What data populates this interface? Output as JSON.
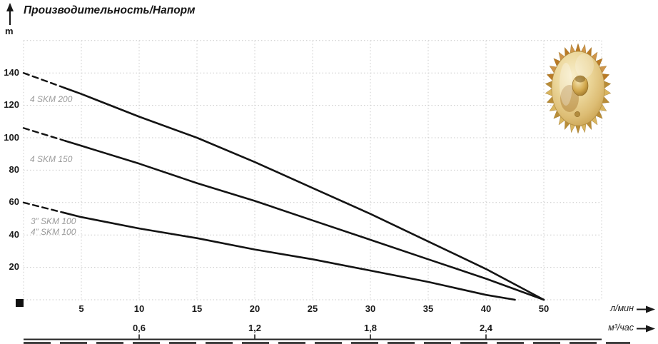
{
  "title": "Производительность/Напорм",
  "y_axis": {
    "unit_label": "m",
    "tick_values": [
      140,
      120,
      100,
      80,
      60,
      40,
      20
    ]
  },
  "x_axis_lmin": {
    "unit_label": "л/мин",
    "tick_labels": [
      "5",
      "10",
      "15",
      "20",
      "25",
      "30",
      "35",
      "40",
      "50"
    ]
  },
  "x_axis_m3h": {
    "unit_label": "м³/час",
    "tick_labels": [
      "0,6",
      "1,2",
      "1,8",
      "2,4"
    ]
  },
  "curve_labels": [
    "4 SKM 200",
    "4 SKM 150",
    "3” SKM 100",
    "4” SKM 100"
  ],
  "colors": {
    "curve": "#141414",
    "grid": "#c9c9c9",
    "curve_label": "#9b9b9b",
    "axis_text": "#1a1a1a",
    "impeller_gold": "#d9b55f"
  },
  "chart_data": {
    "type": "line",
    "title": "Производительность/Напорм",
    "xlabel": "л/мин",
    "x_secondary_label": "м³/час",
    "ylabel": "m",
    "grid": true,
    "ylim": [
      0,
      160
    ],
    "x_tick_sequence_as_printed": [
      5,
      10,
      15,
      20,
      25,
      30,
      35,
      40,
      50
    ],
    "x_secondary_ticks": {
      "0,6": 10,
      "1,2": 20,
      "1,8": 30,
      "2,4": 40
    },
    "series": [
      {
        "name": "4 SKM 200",
        "points": [
          [
            0,
            140
          ],
          [
            5,
            127
          ],
          [
            10,
            113
          ],
          [
            15,
            100
          ],
          [
            20,
            85
          ],
          [
            25,
            69
          ],
          [
            30,
            53
          ],
          [
            35,
            36
          ],
          [
            40,
            19
          ],
          [
            50,
            0
          ]
        ],
        "dash_until_lmin": 3.5
      },
      {
        "name": "4 SKM 150",
        "points": [
          [
            0,
            106
          ],
          [
            5,
            95
          ],
          [
            10,
            84
          ],
          [
            15,
            72
          ],
          [
            20,
            61
          ],
          [
            25,
            49
          ],
          [
            30,
            37
          ],
          [
            35,
            25
          ],
          [
            40,
            13
          ],
          [
            50,
            0
          ]
        ],
        "dash_until_lmin": 3.6
      },
      {
        "name": "3”/4” SKM 100",
        "points": [
          [
            0,
            60
          ],
          [
            5,
            51
          ],
          [
            10,
            44
          ],
          [
            15,
            38
          ],
          [
            20,
            31
          ],
          [
            25,
            25
          ],
          [
            30,
            18
          ],
          [
            35,
            11
          ],
          [
            40,
            3
          ],
          [
            45,
            0
          ]
        ],
        "dash_until_lmin": 3.4
      }
    ]
  }
}
